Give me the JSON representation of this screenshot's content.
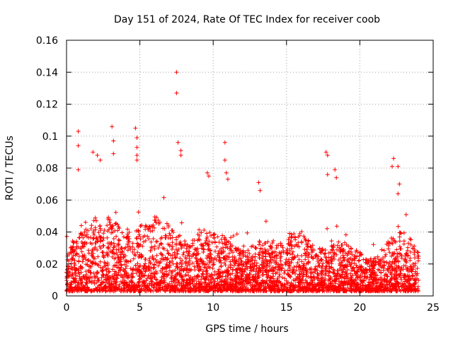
{
  "chart_data": {
    "type": "scatter",
    "title": "Day 151 of 2024, Rate Of TEC Index for receiver coob",
    "xlabel": "GPS time / hours",
    "ylabel": "ROTI / TECUs",
    "xlim": [
      0,
      25
    ],
    "ylim": [
      0,
      0.16
    ],
    "xticks": [
      0,
      5,
      10,
      15,
      20,
      25
    ],
    "xtick_labels": [
      "0",
      "5",
      "10",
      "15",
      "20",
      "25"
    ],
    "yticks": [
      0,
      0.02,
      0.04,
      0.06,
      0.08,
      0.1,
      0.12,
      0.14,
      0.16
    ],
    "ytick_labels": [
      "0",
      "0.02",
      "0.04",
      "0.06",
      "0.08",
      "0.1",
      "0.12",
      "0.14",
      "0.16"
    ],
    "grid": true,
    "marker": "plus",
    "color": "#ff0000",
    "data_x_range": [
      0,
      24
    ],
    "envelope_hours": [
      0,
      0.5,
      1,
      1.5,
      2,
      2.5,
      3,
      3.5,
      4,
      4.5,
      5,
      5.5,
      6,
      6.5,
      7,
      7.5,
      8,
      8.5,
      9,
      9.5,
      10,
      10.5,
      11,
      11.5,
      12,
      12.5,
      13,
      13.5,
      14,
      14.5,
      15,
      15.5,
      16,
      16.5,
      17,
      17.5,
      18,
      18.5,
      19,
      19.5,
      20,
      20.5,
      21,
      21.5,
      22,
      22.5,
      23,
      23.5,
      24
    ],
    "envelope_typical_max": [
      0.025,
      0.035,
      0.04,
      0.045,
      0.05,
      0.045,
      0.05,
      0.045,
      0.04,
      0.04,
      0.045,
      0.045,
      0.05,
      0.05,
      0.045,
      0.04,
      0.035,
      0.035,
      0.04,
      0.04,
      0.04,
      0.04,
      0.035,
      0.03,
      0.03,
      0.03,
      0.035,
      0.035,
      0.035,
      0.035,
      0.04,
      0.04,
      0.04,
      0.035,
      0.03,
      0.03,
      0.035,
      0.035,
      0.035,
      0.03,
      0.028,
      0.022,
      0.025,
      0.03,
      0.035,
      0.04,
      0.04,
      0.035,
      0.03
    ],
    "high_points": [
      {
        "x": 0.8,
        "y": 0.103
      },
      {
        "x": 0.8,
        "y": 0.094
      },
      {
        "x": 0.8,
        "y": 0.079
      },
      {
        "x": 1.8,
        "y": 0.09
      },
      {
        "x": 2.1,
        "y": 0.088
      },
      {
        "x": 2.3,
        "y": 0.085
      },
      {
        "x": 3.1,
        "y": 0.106
      },
      {
        "x": 3.2,
        "y": 0.097
      },
      {
        "x": 3.2,
        "y": 0.089
      },
      {
        "x": 4.7,
        "y": 0.105
      },
      {
        "x": 4.8,
        "y": 0.099
      },
      {
        "x": 4.8,
        "y": 0.093
      },
      {
        "x": 4.8,
        "y": 0.088
      },
      {
        "x": 4.8,
        "y": 0.085
      },
      {
        "x": 7.5,
        "y": 0.14
      },
      {
        "x": 7.5,
        "y": 0.127
      },
      {
        "x": 7.6,
        "y": 0.096
      },
      {
        "x": 7.8,
        "y": 0.091
      },
      {
        "x": 7.8,
        "y": 0.088
      },
      {
        "x": 9.6,
        "y": 0.077
      },
      {
        "x": 9.7,
        "y": 0.075
      },
      {
        "x": 10.8,
        "y": 0.096
      },
      {
        "x": 10.8,
        "y": 0.085
      },
      {
        "x": 10.9,
        "y": 0.077
      },
      {
        "x": 11.0,
        "y": 0.073
      },
      {
        "x": 13.1,
        "y": 0.071
      },
      {
        "x": 13.2,
        "y": 0.066
      },
      {
        "x": 17.7,
        "y": 0.09
      },
      {
        "x": 17.8,
        "y": 0.088
      },
      {
        "x": 17.8,
        "y": 0.076
      },
      {
        "x": 18.3,
        "y": 0.079
      },
      {
        "x": 18.4,
        "y": 0.074
      },
      {
        "x": 22.3,
        "y": 0.086
      },
      {
        "x": 22.2,
        "y": 0.081
      },
      {
        "x": 22.6,
        "y": 0.081
      },
      {
        "x": 22.7,
        "y": 0.07
      },
      {
        "x": 22.6,
        "y": 0.064
      }
    ]
  }
}
